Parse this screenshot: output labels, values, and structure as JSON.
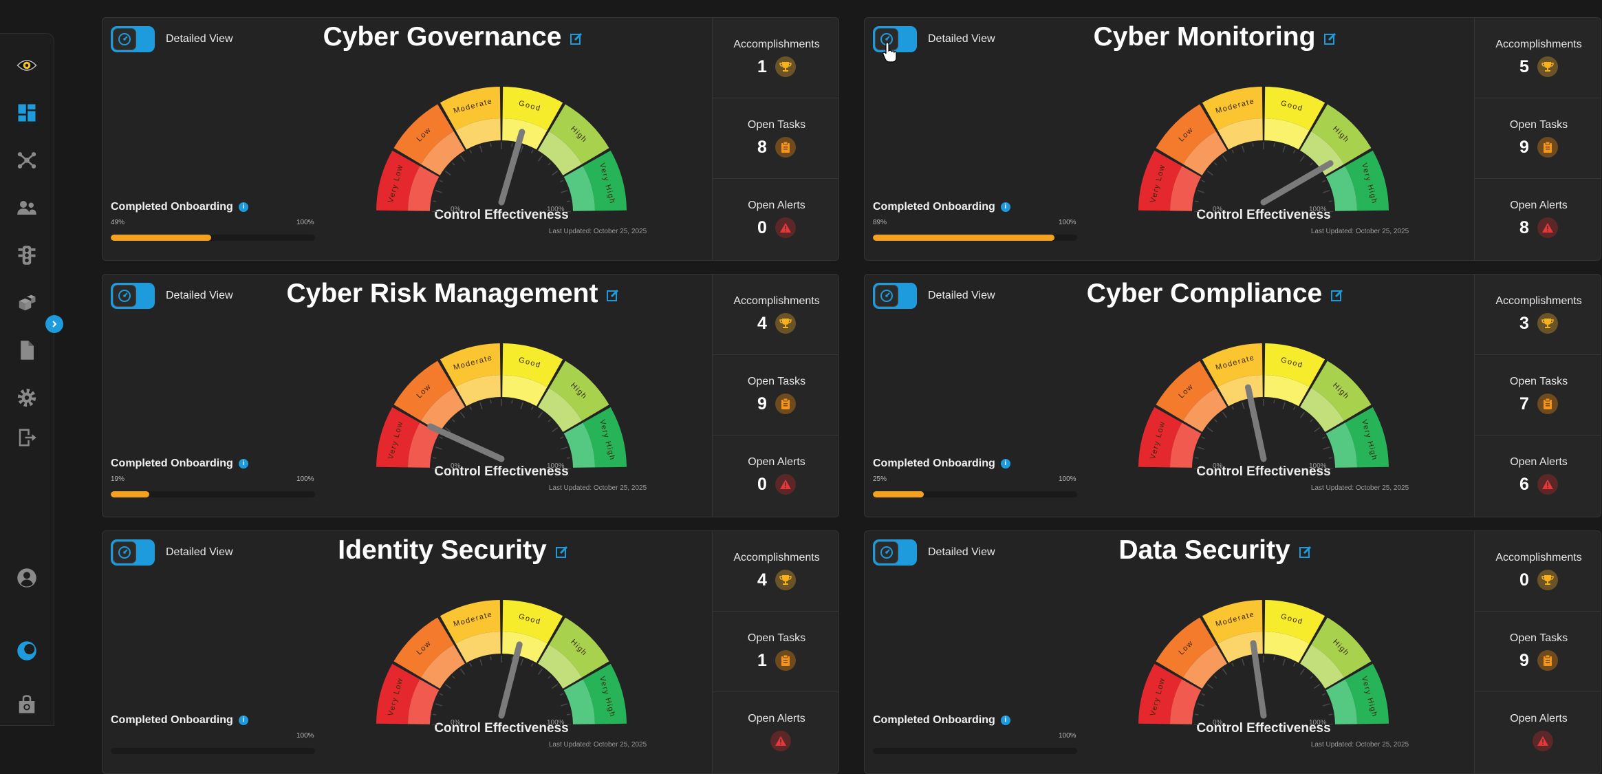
{
  "sidebar": {
    "items": [
      {
        "name": "eye-logo-icon"
      },
      {
        "name": "dashboard-icon"
      },
      {
        "name": "network-icon"
      },
      {
        "name": "users-icon"
      },
      {
        "name": "traffic-light-icon"
      },
      {
        "name": "packages-icon"
      },
      {
        "name": "document-icon"
      },
      {
        "name": "settings-icon"
      },
      {
        "name": "logout-icon"
      },
      {
        "name": "profile-icon"
      },
      {
        "name": "theme-icon"
      },
      {
        "name": "bag-icon"
      }
    ],
    "collapse_icon": "chevron-right-icon"
  },
  "gauge_labels": {
    "segments": [
      "Very Low",
      "Low",
      "Moderate",
      "Good",
      "High",
      "Very High"
    ],
    "min": "0%",
    "max": "100%",
    "center_label": "Control Effectiveness",
    "last_updated": "Last Updated: October 25, 2025"
  },
  "common": {
    "detailed_view": "Detailed View",
    "completed_onboarding": "Completed Onboarding",
    "onboarding_max": "100%",
    "accomplishments_label": "Accomplishments",
    "open_tasks_label": "Open Tasks",
    "open_alerts_label": "Open Alerts"
  },
  "cards": [
    {
      "title": "Cyber Governance",
      "gauge_value": 0.58,
      "onboarding_pct": "49%",
      "onboarding_value": 0.49,
      "accomplishments": "1",
      "open_tasks": "8",
      "open_alerts": "0"
    },
    {
      "title": "Cyber Monitoring",
      "gauge_value": 0.8,
      "onboarding_pct": "89%",
      "onboarding_value": 0.89,
      "accomplishments": "5",
      "open_tasks": "9",
      "open_alerts": "8"
    },
    {
      "title": "Cyber Risk Management",
      "gauge_value": 0.17,
      "onboarding_pct": "19%",
      "onboarding_value": 0.19,
      "accomplishments": "4",
      "open_tasks": "9",
      "open_alerts": "0"
    },
    {
      "title": "Cyber Compliance",
      "gauge_value": 0.44,
      "onboarding_pct": "25%",
      "onboarding_value": 0.25,
      "accomplishments": "3",
      "open_tasks": "7",
      "open_alerts": "6"
    },
    {
      "title": "Identity Security",
      "gauge_value": 0.57,
      "onboarding_pct": "",
      "onboarding_value": 0.0,
      "accomplishments": "4",
      "open_tasks": "1",
      "open_alerts": ""
    },
    {
      "title": "Data Security",
      "gauge_value": 0.46,
      "onboarding_pct": "",
      "onboarding_value": 0.0,
      "accomplishments": "0",
      "open_tasks": "9",
      "open_alerts": ""
    }
  ],
  "colors": {
    "accent": "#1e9bdc",
    "onboarding_bar": "#f5a11d",
    "segments": [
      "#e5282e",
      "#f47a2c",
      "#fbc431",
      "#f6ec2b",
      "#a8d24d",
      "#27b458"
    ]
  }
}
